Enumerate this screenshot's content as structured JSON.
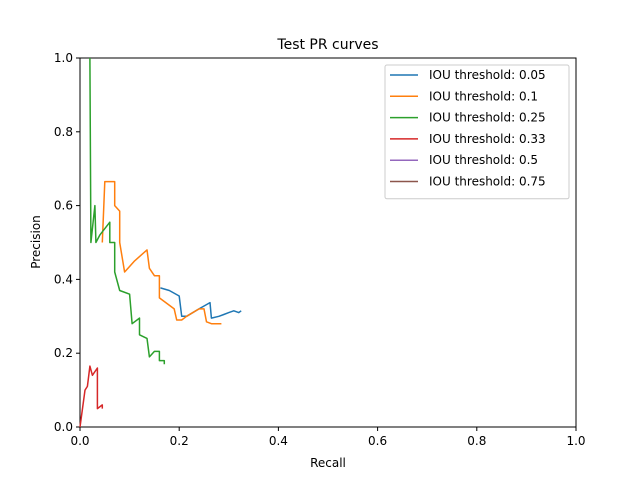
{
  "chart_data": {
    "type": "line",
    "title": "Test PR curves",
    "xlabel": "Recall",
    "ylabel": "Precision",
    "xlim": [
      0,
      1
    ],
    "ylim": [
      0,
      1
    ],
    "xticks": [
      "0.0",
      "0.2",
      "0.4",
      "0.6",
      "0.8",
      "1.0"
    ],
    "yticks": [
      "0.0",
      "0.2",
      "0.4",
      "0.6",
      "0.8",
      "1.0"
    ],
    "grid": false,
    "legend_position": "top-right",
    "series": [
      {
        "name": "IOU threshold: 0.05",
        "color": "#1f77b4",
        "points": [
          [
            0.162,
            0.377
          ],
          [
            0.18,
            0.37
          ],
          [
            0.2,
            0.355
          ],
          [
            0.205,
            0.3
          ],
          [
            0.215,
            0.3
          ],
          [
            0.24,
            0.32
          ],
          [
            0.262,
            0.337
          ],
          [
            0.265,
            0.295
          ],
          [
            0.28,
            0.3
          ],
          [
            0.29,
            0.305
          ],
          [
            0.3,
            0.31
          ],
          [
            0.31,
            0.315
          ],
          [
            0.32,
            0.31
          ],
          [
            0.325,
            0.315
          ]
        ]
      },
      {
        "name": "IOU threshold: 0.1",
        "color": "#ff7f0e",
        "points": [
          [
            0.045,
            0.5
          ],
          [
            0.05,
            0.665
          ],
          [
            0.07,
            0.665
          ],
          [
            0.07,
            0.6
          ],
          [
            0.08,
            0.585
          ],
          [
            0.08,
            0.5
          ],
          [
            0.09,
            0.42
          ],
          [
            0.11,
            0.45
          ],
          [
            0.135,
            0.48
          ],
          [
            0.14,
            0.43
          ],
          [
            0.15,
            0.41
          ],
          [
            0.16,
            0.41
          ],
          [
            0.16,
            0.35
          ],
          [
            0.19,
            0.32
          ],
          [
            0.195,
            0.29
          ],
          [
            0.205,
            0.29
          ],
          [
            0.215,
            0.3
          ],
          [
            0.24,
            0.32
          ],
          [
            0.25,
            0.32
          ],
          [
            0.255,
            0.285
          ],
          [
            0.265,
            0.28
          ],
          [
            0.27,
            0.28
          ],
          [
            0.275,
            0.28
          ],
          [
            0.285,
            0.28
          ]
        ]
      },
      {
        "name": "IOU threshold: 0.25",
        "color": "#2ca02c",
        "points": [
          [
            0.02,
            1.0
          ],
          [
            0.022,
            0.5
          ],
          [
            0.03,
            0.6
          ],
          [
            0.032,
            0.5
          ],
          [
            0.04,
            0.52
          ],
          [
            0.06,
            0.555
          ],
          [
            0.06,
            0.5
          ],
          [
            0.07,
            0.5
          ],
          [
            0.07,
            0.42
          ],
          [
            0.08,
            0.37
          ],
          [
            0.1,
            0.36
          ],
          [
            0.105,
            0.28
          ],
          [
            0.12,
            0.295
          ],
          [
            0.12,
            0.25
          ],
          [
            0.135,
            0.24
          ],
          [
            0.14,
            0.19
          ],
          [
            0.15,
            0.205
          ],
          [
            0.16,
            0.205
          ],
          [
            0.16,
            0.18
          ],
          [
            0.17,
            0.18
          ],
          [
            0.17,
            0.17
          ]
        ]
      },
      {
        "name": "IOU threshold: 0.33",
        "color": "#d62728",
        "points": [
          [
            0.0,
            0.0
          ],
          [
            0.01,
            0.1
          ],
          [
            0.015,
            0.11
          ],
          [
            0.02,
            0.165
          ],
          [
            0.025,
            0.14
          ],
          [
            0.035,
            0.16
          ],
          [
            0.035,
            0.05
          ],
          [
            0.045,
            0.06
          ],
          [
            0.045,
            0.05
          ]
        ]
      },
      {
        "name": "IOU threshold: 0.5",
        "color": "#9467bd",
        "points": []
      },
      {
        "name": "IOU threshold: 0.75",
        "color": "#8c564b",
        "points": []
      }
    ]
  }
}
